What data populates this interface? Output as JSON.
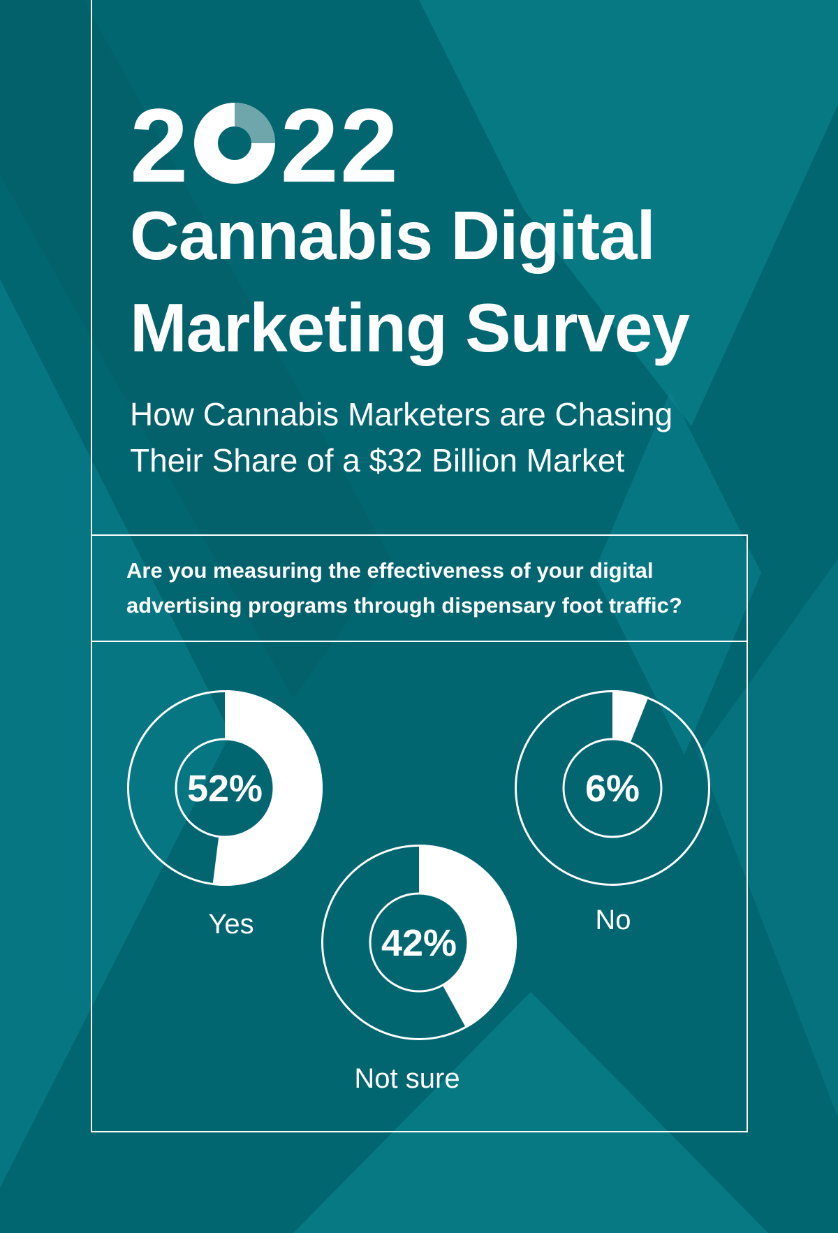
{
  "header": {
    "year": [
      "2",
      "O",
      "22"
    ],
    "title_lines": [
      "Cannabis Digital",
      "Marketing Survey"
    ],
    "subtitle_lines": [
      "How Cannabis Marketers are Chasing",
      "Their Share of a $32 Billion Market"
    ]
  },
  "question_lines": [
    "Are you measuring the effectiveness of your digital",
    "advertising programs through dispensary foot traffic?"
  ],
  "colors": {
    "background": "#026671",
    "band": "#0b8590",
    "white": "#ffffff",
    "year_arc": "#6fa6ab"
  },
  "chart_data": {
    "type": "pie",
    "title": "Are you measuring the effectiveness of your digital advertising programs through dispensary foot traffic?",
    "unit": "%",
    "slices": [
      {
        "label": "Yes",
        "value": 52,
        "display": "52%"
      },
      {
        "label": "Not sure",
        "value": 42,
        "display": "42%"
      },
      {
        "label": "No",
        "value": 6,
        "display": "6%"
      }
    ]
  }
}
